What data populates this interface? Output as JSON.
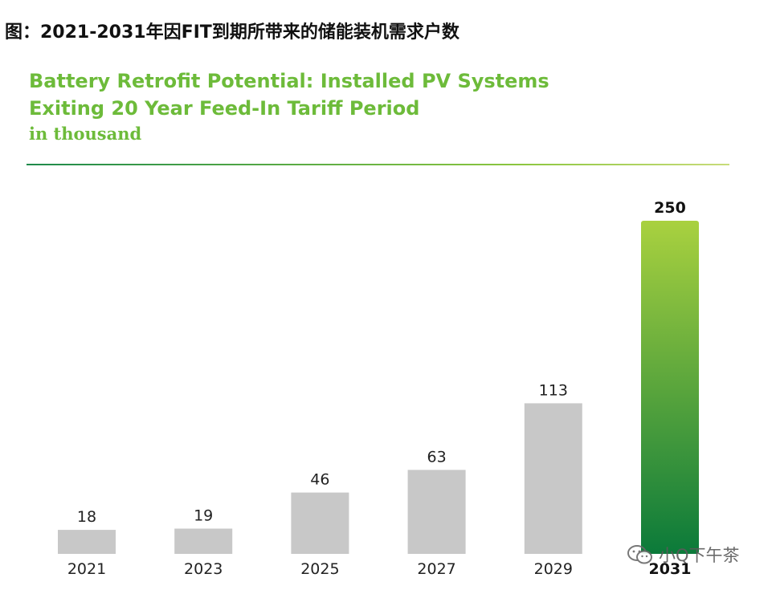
{
  "caption": "图：2021-2031年因FIT到期所带来的储能装机需求户数",
  "watermark_text": "小Q下午茶",
  "colors": {
    "title_green": "#6dbb3a",
    "bar_gray": "#c8c8c8",
    "highlight_top": "#a9d13f",
    "highlight_bottom": "#0b7a3a"
  },
  "chart_data": {
    "type": "bar",
    "title_lines": [
      "Battery Retrofit Potential: Installed PV Systems",
      "Exiting 20 Year Feed-In Tariff Period"
    ],
    "subtitle": "in thousand",
    "categories": [
      "2021",
      "2023",
      "2025",
      "2027",
      "2029",
      "2031"
    ],
    "values": [
      18,
      19,
      46,
      63,
      113,
      250
    ],
    "value_labels": [
      "18",
      "19",
      "46",
      "63",
      "113",
      "250"
    ],
    "highlight_index": 5,
    "ylim": [
      0,
      250
    ],
    "xlabel": "",
    "ylabel": "",
    "grid": false,
    "legend": "none"
  }
}
